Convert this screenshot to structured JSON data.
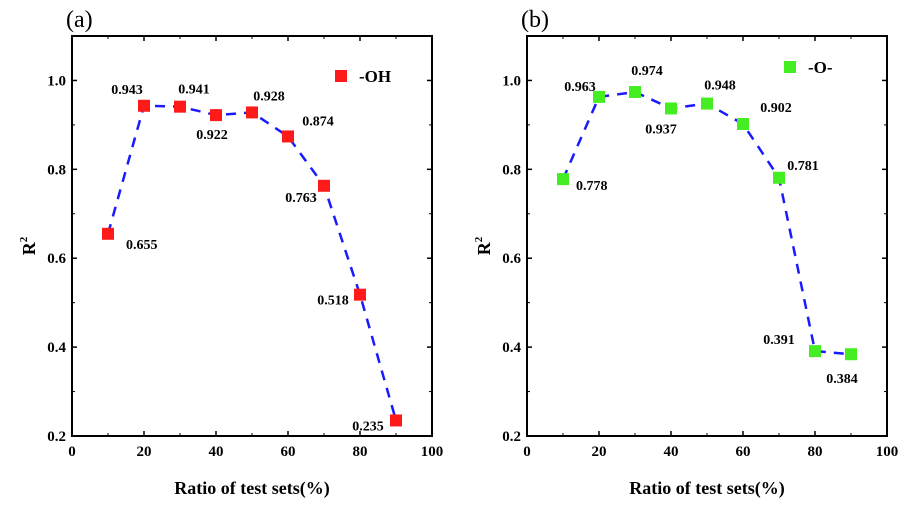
{
  "chart_data": [
    {
      "type": "line",
      "panel_label": "(a)",
      "xlabel": "Ratio of test sets(%)",
      "ylabel": "R",
      "ylabel_superscript": "2",
      "xlim": [
        0,
        100
      ],
      "ylim": [
        0.2,
        1.1
      ],
      "xticks": [
        "0",
        "20",
        "40",
        "60",
        "80",
        "100"
      ],
      "yticks": [
        "0.2",
        "0.4",
        "0.6",
        "0.8",
        "1.0"
      ],
      "legend_position": "top-right",
      "grid": false,
      "line_style": "dashed",
      "line_color": "#1a1aff",
      "series": [
        {
          "name": "-OH",
          "marker": "square",
          "color": "#ff1a1a",
          "x": [
            10,
            20,
            30,
            40,
            50,
            60,
            70,
            80,
            90
          ],
          "y": [
            0.655,
            0.943,
            0.941,
            0.922,
            0.928,
            0.874,
            0.763,
            0.518,
            0.235
          ],
          "labels": [
            "0.655",
            "0.943",
            "0.941",
            "0.922",
            "0.928",
            "0.874",
            "0.763",
            "0.518",
            "0.235"
          ]
        }
      ]
    },
    {
      "type": "line",
      "panel_label": "(b)",
      "xlabel": "Ratio of test sets(%)",
      "ylabel": "R",
      "ylabel_superscript": "2",
      "xlim": [
        0,
        100
      ],
      "ylim": [
        0.2,
        1.1
      ],
      "xticks": [
        "0",
        "20",
        "40",
        "60",
        "80",
        "100"
      ],
      "yticks": [
        "0.2",
        "0.4",
        "0.6",
        "0.8",
        "1.0"
      ],
      "legend_position": "top-right",
      "grid": false,
      "line_style": "dashed",
      "line_color": "#1a1aff",
      "series": [
        {
          "name": "-O-",
          "marker": "square",
          "color": "#44ee22",
          "x": [
            10,
            20,
            30,
            40,
            50,
            60,
            70,
            80,
            90
          ],
          "y": [
            0.778,
            0.963,
            0.974,
            0.937,
            0.948,
            0.902,
            0.781,
            0.391,
            0.384
          ],
          "labels": [
            "0.778",
            "0.963",
            "0.974",
            "0.937",
            "0.948",
            "0.902",
            "0.781",
            "0.391",
            "0.384"
          ]
        }
      ]
    }
  ]
}
